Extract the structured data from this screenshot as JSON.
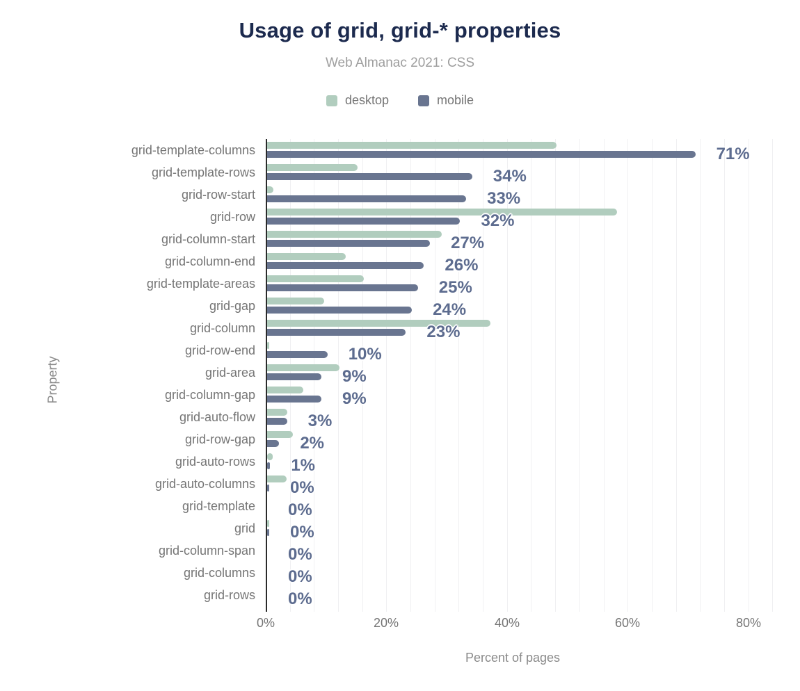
{
  "title": "Usage of grid, grid-* properties",
  "subtitle": "Web Almanac 2021: CSS",
  "colors": {
    "title": "#1c2a4e",
    "desktop_bar": "#b1cdbe",
    "mobile_bar": "#697590",
    "value_label": "#5d6c8f",
    "axis_text": "#757575",
    "gridline": "#f0f0f2",
    "axis_line": "#2b2b2b"
  },
  "legend": {
    "position": "top-center",
    "items": [
      {
        "label": "desktop",
        "color": "#b1cdbe"
      },
      {
        "label": "mobile",
        "color": "#697590"
      }
    ]
  },
  "chart_data": {
    "type": "bar",
    "orientation": "horizontal",
    "title": "Usage of grid, grid-* properties",
    "subtitle": "Web Almanac 2021: CSS",
    "xlabel": "Percent of pages",
    "ylabel": "Property",
    "xlim": [
      0,
      85
    ],
    "x_ticks": [
      {
        "label": "0%",
        "value": 0
      },
      {
        "label": "20%",
        "value": 20
      },
      {
        "label": "40%",
        "value": 40
      },
      {
        "label": "60%",
        "value": 60
      },
      {
        "label": "80%",
        "value": 80
      }
    ],
    "grid": {
      "on": true,
      "minor_step_pct": 4
    },
    "categories": [
      "grid-template-columns",
      "grid-template-rows",
      "grid-row-start",
      "grid-row",
      "grid-column-start",
      "grid-column-end",
      "grid-template-areas",
      "grid-gap",
      "grid-column",
      "grid-row-end",
      "grid-area",
      "grid-column-gap",
      "grid-auto-flow",
      "grid-row-gap",
      "grid-auto-rows",
      "grid-auto-columns",
      "grid-template",
      "grid",
      "grid-column-span",
      "grid-columns",
      "grid-rows"
    ],
    "series": [
      {
        "name": "desktop",
        "color": "#b1cdbe",
        "values": [
          48,
          15,
          1,
          58,
          29,
          13,
          16,
          9.5,
          37,
          0.4,
          12,
          6,
          3.4,
          4.3,
          0.9,
          3.2,
          0,
          0.4,
          0,
          0,
          0
        ]
      },
      {
        "name": "mobile",
        "color": "#697590",
        "values": [
          71,
          34,
          33,
          32,
          27,
          26,
          25,
          24,
          23,
          10,
          9,
          9,
          3.3,
          2,
          0.5,
          0.3,
          0,
          0.2,
          0,
          0,
          0
        ],
        "data_labels": [
          "71%",
          "34%",
          "33%",
          "32%",
          "27%",
          "26%",
          "25%",
          "24%",
          "23%",
          "10%",
          "9%",
          "9%",
          "3%",
          "2%",
          "1%",
          "0%",
          "0%",
          "0%",
          "0%",
          "0%",
          "0%"
        ]
      }
    ]
  }
}
